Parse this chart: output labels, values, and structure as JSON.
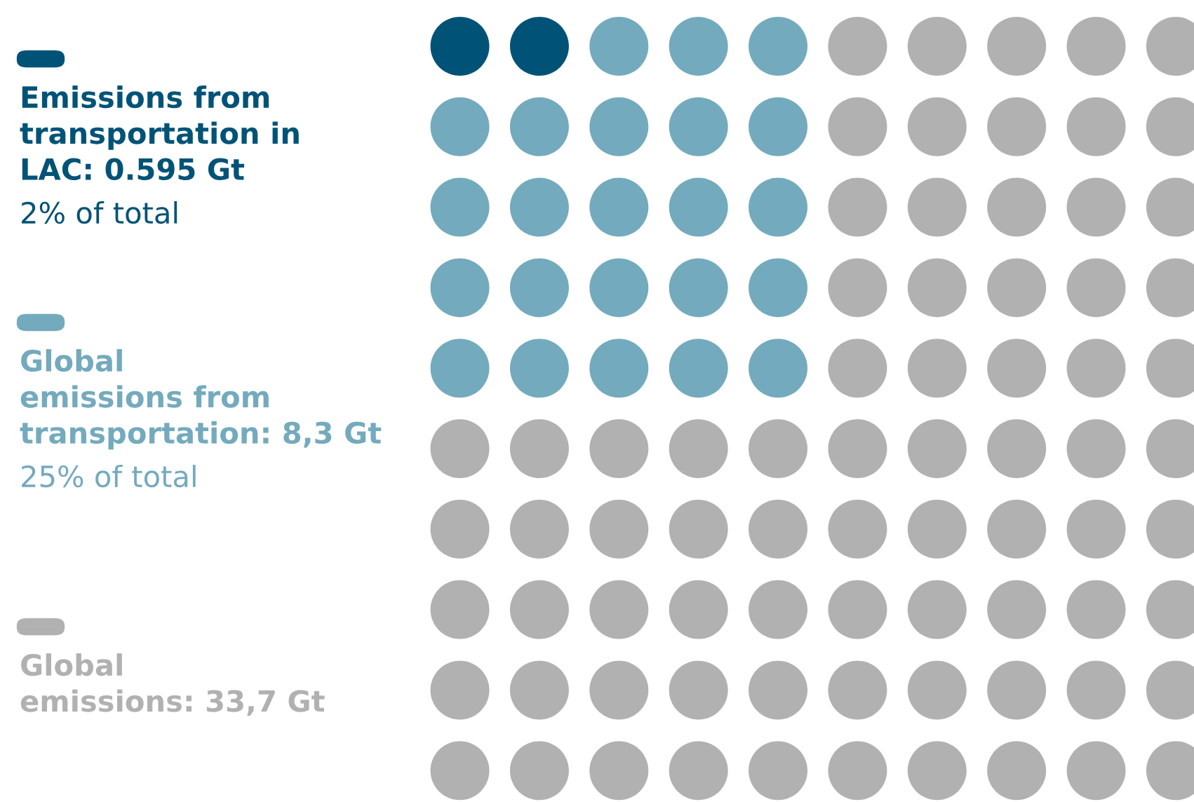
{
  "chart_data": {
    "type": "other",
    "series": [
      {
        "name": "Emissions from\ntransportation in\nLAC: 0.595 Gt",
        "color": "#005377",
        "values": [
          2
        ],
        "value_labels": [
          "2% of total"
        ]
      },
      {
        "name": "Global\nemissions from\ntransportation: 8,3 Gt",
        "color": "#74aabd",
        "values": [
          25
        ],
        "value_labels": [
          "25% of total"
        ]
      },
      {
        "name": "Global\nemissions: 33,7 Gt",
        "color": "#b1b1b1",
        "values": [
          null
        ],
        "value_labels": [
          null
        ]
      }
    ]
  }
}
